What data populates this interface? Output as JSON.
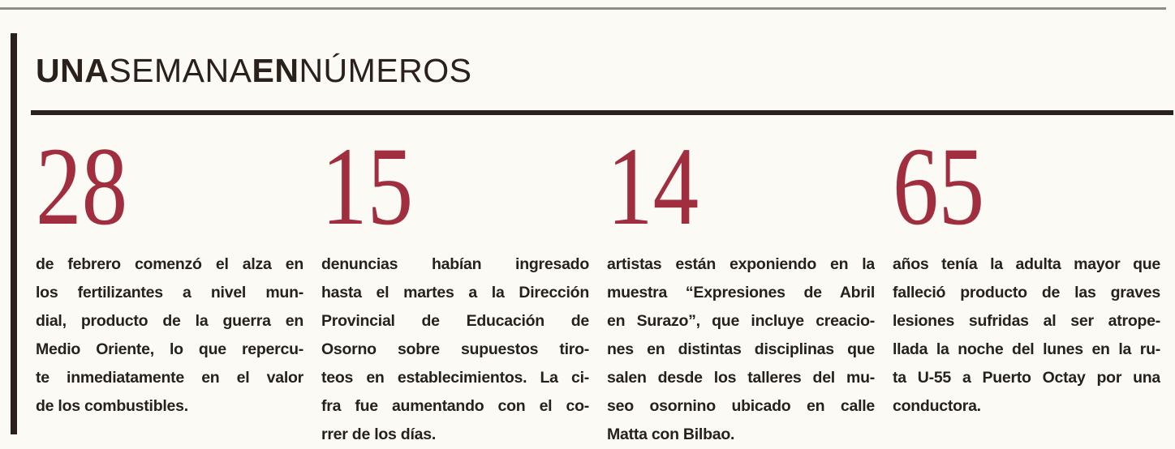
{
  "colors": {
    "paper": "#fcfaf5",
    "ink": "#2b211c",
    "ink_text": "#26201e",
    "number_red": "#a12e3e",
    "top_line_gray": "#8f8d8a"
  },
  "header": {
    "segments": [
      {
        "text": "UNA",
        "bold": true
      },
      {
        "text": "SEMANA",
        "bold": false
      },
      {
        "text": "EN",
        "bold": true
      },
      {
        "text": "NÚMEROS",
        "bold": false
      }
    ]
  },
  "items": [
    {
      "number": "28",
      "lines": [
        "de febrero comenzó el alza en",
        "los fertilizantes a nivel mun-",
        "dial, producto de la guerra en",
        "Medio Oriente, lo que repercu-",
        "te inmediatamente en el valor",
        "de los combustibles."
      ]
    },
    {
      "number": "15",
      "lines": [
        "denuncias habían ingresado",
        "hasta el martes a la Dirección",
        "Provincial de Educación de",
        "Osorno sobre supuestos tiro-",
        "teos en establecimientos. La ci-",
        "fra fue aumentando con el co-",
        "rrer de los días."
      ]
    },
    {
      "number": "14",
      "lines": [
        "artistas están exponiendo en la",
        "muestra “Expresiones de Abril",
        "en Surazo”, que incluye creacio-",
        "nes en distintas disciplinas que",
        "salen desde los talleres del mu-",
        "seo osornino ubicado en calle",
        "Matta con Bilbao."
      ]
    },
    {
      "number": "65",
      "lines": [
        "años tenía la adulta mayor que",
        "falleció producto de las graves",
        "lesiones sufridas al ser atrope-",
        "llada la noche del lunes en la ru-",
        "ta U-55 a Puerto Octay por una",
        "conductora."
      ]
    }
  ]
}
